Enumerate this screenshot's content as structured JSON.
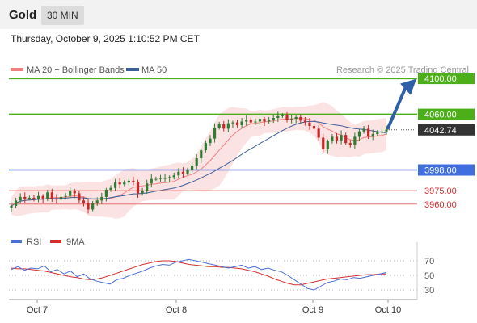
{
  "header": {
    "title": "Gold",
    "timeframe": "30 MIN",
    "datetime": "Thursday, October 9, 2025 1:10:52 PM CET"
  },
  "legend": [
    {
      "label": "MA 20 + Bollinger Bands",
      "color": "#f08080"
    },
    {
      "label": "MA 50",
      "color": "#3a5f9a"
    }
  ],
  "credit": "Research © 2025 Trading Central",
  "colors": {
    "up": "#2e7d32",
    "down": "#c62828",
    "resistance": "#4caf1a",
    "support_blue": "#3f6fde",
    "support_red": "#e57373",
    "arrow": "#2f5fa7",
    "last": "#333333"
  },
  "chart_data": [
    {
      "type": "candlestick",
      "x_labels": [
        "Oct 7",
        "Oct 8",
        "Oct 9",
        "Oct 10"
      ],
      "y_range": [
        3940,
        4110
      ],
      "last_price": 4042.74,
      "levels": [
        {
          "label": "4100.00",
          "value": 4100.0,
          "kind": "resistance"
        },
        {
          "label": "4060.00",
          "value": 4060.0,
          "kind": "resistance"
        },
        {
          "label": "3998.00",
          "value": 3998.0,
          "kind": "pivot"
        },
        {
          "label": "3975.00",
          "value": 3975.0,
          "kind": "support"
        },
        {
          "label": "3960.00",
          "value": 3960.0,
          "kind": "support"
        }
      ],
      "close_path": [
        3958,
        3964,
        3968,
        3966,
        3967,
        3966,
        3969,
        3966,
        3973,
        3966,
        3965,
        3968,
        3969,
        3975,
        3972,
        3964,
        3961,
        3954,
        3961,
        3964,
        3968,
        3976,
        3978,
        3984,
        3982,
        3984,
        3986,
        3985,
        3972,
        3975,
        3983,
        3988,
        3988,
        3989,
        3989,
        3990,
        3992,
        3996,
        3994,
        3998,
        4003,
        4011,
        4020,
        4028,
        4033,
        4045,
        4049,
        4044,
        4050,
        4051,
        4048,
        4052,
        4054,
        4051,
        4052,
        4055,
        4052,
        4054,
        4056,
        4058,
        4059,
        4054,
        4055,
        4057,
        4053,
        4051,
        4047,
        4044,
        4034,
        4021,
        4030,
        4035,
        4031,
        4037,
        4028,
        4026,
        4035,
        4041,
        4044,
        4036,
        4038,
        4040,
        4041,
        4043
      ]
    },
    {
      "type": "line",
      "title": "RSI",
      "series": [
        {
          "name": "RSI",
          "color": "#4a6fd6"
        },
        {
          "name": "9MA",
          "color": "#d32f2f"
        }
      ],
      "y_ticks": [
        70,
        50,
        30
      ],
      "rsi": [
        58,
        62,
        57,
        60,
        59,
        63,
        55,
        58,
        52,
        56,
        48,
        52,
        45,
        42,
        40,
        38,
        44,
        46,
        50,
        53,
        56,
        60,
        63,
        65,
        64,
        68,
        70,
        72,
        70,
        68,
        66,
        64,
        62,
        60,
        62,
        64,
        60,
        62,
        58,
        60,
        57,
        55,
        50,
        44,
        38,
        32,
        30,
        35,
        40,
        42,
        45,
        44,
        47,
        46,
        48,
        50,
        52,
        54
      ],
      "ma9": [
        60,
        59,
        59,
        58,
        57,
        56,
        54,
        52,
        50,
        48,
        47,
        45,
        44,
        45,
        47,
        50,
        53,
        56,
        59,
        62,
        65,
        67,
        69,
        70,
        70,
        69,
        67,
        65,
        64,
        63,
        62,
        62,
        61,
        61,
        60,
        59,
        57,
        55,
        52,
        49,
        45,
        42,
        39,
        37,
        37,
        39,
        41,
        43,
        45,
        46,
        47,
        48,
        49,
        50,
        51,
        51,
        52,
        52
      ]
    }
  ]
}
